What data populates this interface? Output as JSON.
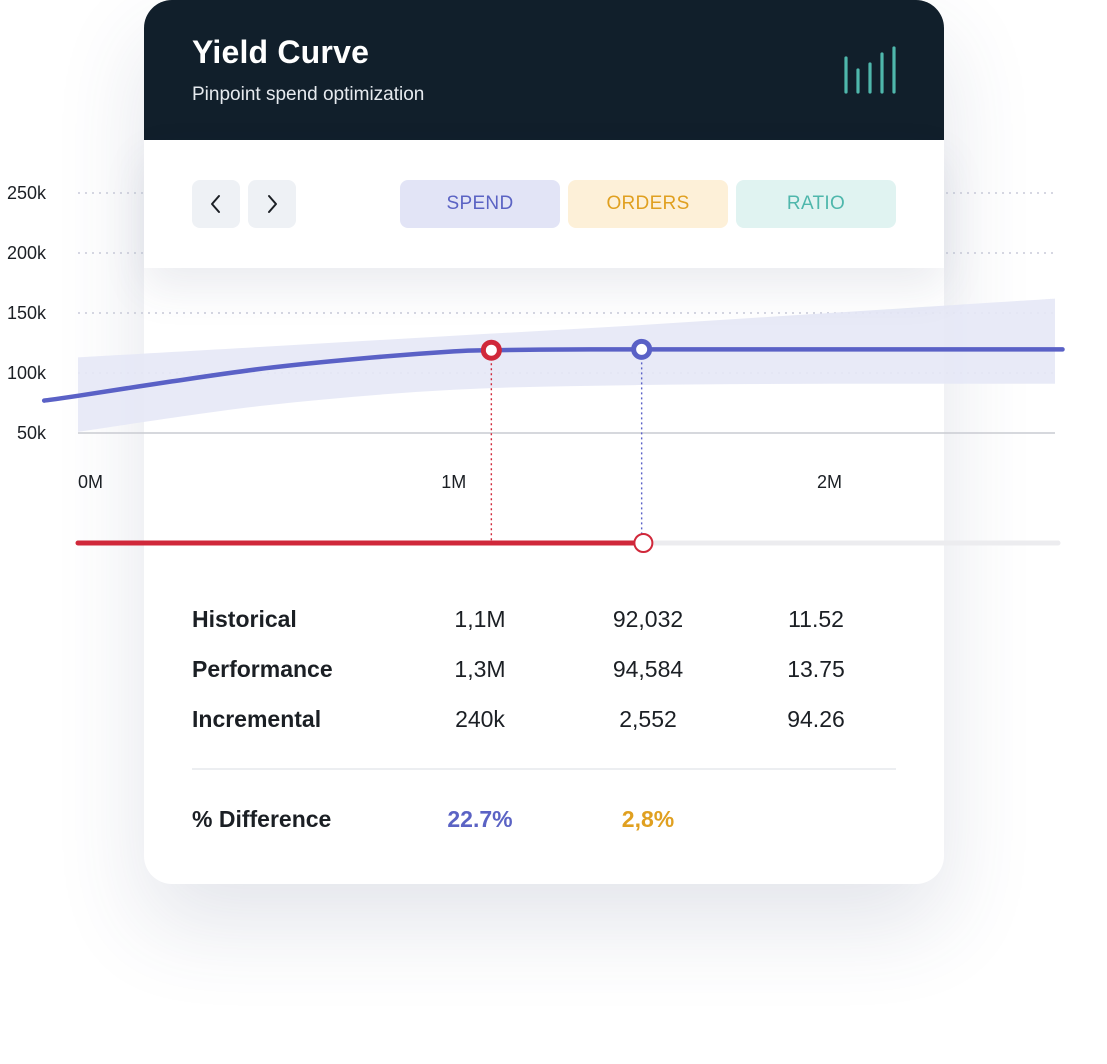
{
  "card": {
    "title": "Yield Curve",
    "subtitle": "Pinpoint spend optimization",
    "icon": "bar-chart-icon"
  },
  "toolbar": {
    "prev_icon": "chevron-left-icon",
    "next_icon": "chevron-right-icon",
    "tabs": [
      {
        "label": "SPEND",
        "color": "#5b63c4"
      },
      {
        "label": "ORDERS",
        "color": "#e0a020"
      },
      {
        "label": "RATIO",
        "color": "#4fb7ac"
      }
    ]
  },
  "chart_data": {
    "type": "line",
    "title": "",
    "xlabel": "",
    "ylabel": "",
    "x_ticks": [
      {
        "label": "0M",
        "value": 0
      },
      {
        "label": "1M",
        "value": 1000000
      },
      {
        "label": "2M",
        "value": 2000000
      }
    ],
    "y_ticks": [
      {
        "label": "250k",
        "value": 250000
      },
      {
        "label": "200k",
        "value": 200000
      },
      {
        "label": "150k",
        "value": 150000
      },
      {
        "label": "100k",
        "value": 100000
      },
      {
        "label": "50k",
        "value": 50000
      }
    ],
    "xlim": [
      0,
      2600000
    ],
    "ylim": [
      50000,
      250000
    ],
    "grid": true,
    "series": [
      {
        "color": "#5a61c6",
        "x": [
          -90000,
          0,
          250000,
          500000,
          750000,
          1000000,
          1100000,
          1300000,
          1500000,
          1750000,
          2000000,
          2250000,
          2500000,
          2620000
        ],
        "y": [
          77000,
          81000,
          93000,
          104000,
          112000,
          118000,
          119000,
          119600,
          119700,
          119700,
          119700,
          119700,
          119700,
          119700
        ]
      }
    ],
    "band": {
      "color": "#e6e8f6",
      "x": [
        0,
        500000,
        1000000,
        1500000,
        2000000,
        2500000,
        2600000
      ],
      "upper": [
        113000,
        122000,
        131000,
        140000,
        150000,
        160000,
        162000
      ],
      "lower": [
        51000,
        73000,
        86000,
        90000,
        91000,
        91000,
        91000
      ]
    },
    "markers": [
      {
        "x": 1100000,
        "y": 119000,
        "color": "#d0283a"
      },
      {
        "x": 1500000,
        "y": 119700,
        "color": "#5a61c6"
      }
    ],
    "slider": {
      "min": 0,
      "max": 2600000,
      "value": 1500000,
      "fill_color": "#d0283a"
    }
  },
  "stats": {
    "rows": [
      {
        "label": "Historical",
        "spend": "1,1M",
        "orders": "92,032",
        "ratio": "11.52"
      },
      {
        "label": "Performance",
        "spend": "1,3M",
        "orders": "94,584",
        "ratio": "13.75"
      },
      {
        "label": "Incremental",
        "spend": "240k",
        "orders": "2,552",
        "ratio": "94.26"
      }
    ],
    "difference": {
      "label": "% Difference",
      "spend": "22.7%",
      "orders": "2,8%"
    }
  }
}
